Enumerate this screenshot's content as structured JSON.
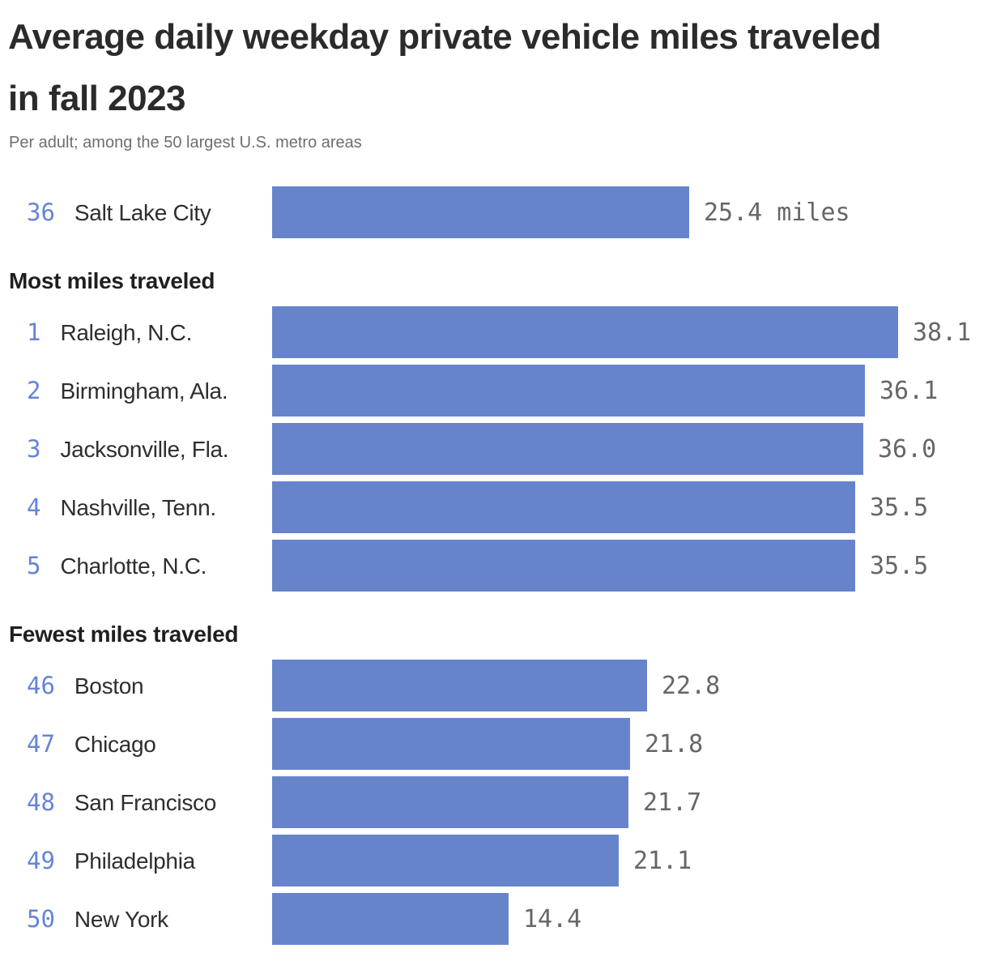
{
  "header": {
    "title": "Average daily weekday private vehicle miles traveled in fall 2023",
    "subtitle": "Per adult; among the 50 largest U.S. metro areas"
  },
  "colors": {
    "bar": "#6784CB",
    "rank": "#6584D8",
    "value_label": "#666666",
    "title": "#2B2B2B",
    "subtitle": "#6E6E6E",
    "city": "#2E2E2E",
    "heading": "#1F1F1F"
  },
  "chart_data": {
    "type": "bar",
    "orientation": "horizontal",
    "title": "Average daily weekday private vehicle miles traveled in fall 2023",
    "subtitle": "Per adult; among the 50 largest U.S. metro areas",
    "unit": "miles",
    "xlim": [
      0,
      38.1
    ],
    "grid": false,
    "legend": false,
    "highlight_row": {
      "rank": "36",
      "city": "Salt Lake City",
      "value": 25.4,
      "label": "25.4 miles"
    },
    "sections": [
      {
        "heading": "Most miles traveled",
        "rows": [
          {
            "rank": "1",
            "city": "Raleigh, N.C.",
            "value": 38.1,
            "label": "38.1"
          },
          {
            "rank": "2",
            "city": "Birmingham, Ala.",
            "value": 36.1,
            "label": "36.1"
          },
          {
            "rank": "3",
            "city": "Jacksonville, Fla.",
            "value": 36.0,
            "label": "36.0"
          },
          {
            "rank": "4",
            "city": "Nashville, Tenn.",
            "value": 35.5,
            "label": "35.5"
          },
          {
            "rank": "5",
            "city": "Charlotte, N.C.",
            "value": 35.5,
            "label": "35.5"
          }
        ]
      },
      {
        "heading": "Fewest miles traveled",
        "rows": [
          {
            "rank": "46",
            "city": "Boston",
            "value": 22.8,
            "label": "22.8"
          },
          {
            "rank": "47",
            "city": "Chicago",
            "value": 21.8,
            "label": "21.8"
          },
          {
            "rank": "48",
            "city": "San Francisco",
            "value": 21.7,
            "label": "21.7"
          },
          {
            "rank": "49",
            "city": "Philadelphia",
            "value": 21.1,
            "label": "21.1"
          },
          {
            "rank": "50",
            "city": "New York",
            "value": 14.4,
            "label": "14.4"
          }
        ]
      }
    ]
  }
}
